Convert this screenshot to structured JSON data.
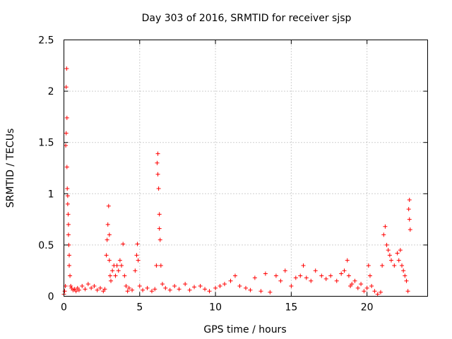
{
  "chart_data": {
    "type": "scatter",
    "title": "Day 303 of 2016, SRMTID for receiver sjsp",
    "xlabel": "GPS time / hours",
    "ylabel": "SRMTID / TECUs",
    "xlim": [
      0,
      24
    ],
    "ylim": [
      0,
      2.5
    ],
    "x_ticks": [
      0,
      5,
      10,
      15,
      20
    ],
    "x_tick_labels": [
      "0",
      "5",
      "10",
      "15",
      "20"
    ],
    "y_ticks": [
      0,
      0.5,
      1,
      1.5,
      2,
      2.5
    ],
    "y_tick_labels": [
      "0",
      "0.5",
      "1",
      "1.5",
      "2",
      "2.5"
    ],
    "grid": true,
    "marker": "+",
    "color": "#ff0000",
    "series": [
      {
        "name": "SRMTID",
        "x": [
          0.0,
          0.05,
          0.1,
          0.12,
          0.15,
          0.15,
          0.18,
          0.2,
          0.2,
          0.22,
          0.25,
          0.25,
          0.28,
          0.3,
          0.3,
          0.32,
          0.35,
          0.35,
          0.4,
          0.45,
          0.5,
          0.6,
          0.7,
          0.8,
          0.9,
          1.0,
          1.2,
          1.4,
          1.6,
          1.8,
          2.0,
          2.2,
          2.4,
          2.6,
          2.7,
          2.8,
          2.85,
          2.9,
          2.95,
          3.0,
          3.0,
          3.05,
          3.1,
          3.2,
          3.3,
          3.4,
          3.5,
          3.6,
          3.7,
          3.8,
          3.9,
          4.0,
          4.1,
          4.2,
          4.3,
          4.5,
          4.7,
          4.8,
          4.85,
          4.9,
          5.0,
          5.2,
          5.5,
          5.8,
          6.0,
          6.1,
          6.15,
          6.2,
          6.2,
          6.25,
          6.3,
          6.3,
          6.35,
          6.4,
          6.5,
          6.7,
          7.0,
          7.3,
          7.6,
          8.0,
          8.3,
          8.6,
          9.0,
          9.3,
          9.6,
          10.0,
          10.3,
          10.6,
          11.0,
          11.3,
          11.6,
          12.0,
          12.3,
          12.6,
          13.0,
          13.3,
          13.6,
          14.0,
          14.3,
          14.6,
          15.0,
          15.3,
          15.6,
          15.8,
          16.0,
          16.3,
          16.6,
          17.0,
          17.3,
          17.6,
          18.0,
          18.3,
          18.5,
          18.7,
          18.8,
          18.9,
          19.0,
          19.2,
          19.4,
          19.6,
          19.8,
          20.0,
          20.1,
          20.2,
          20.3,
          20.5,
          20.7,
          20.9,
          21.0,
          21.1,
          21.2,
          21.3,
          21.4,
          21.5,
          21.6,
          21.8,
          22.0,
          22.1,
          22.2,
          22.3,
          22.4,
          22.5,
          22.6,
          22.7,
          22.75,
          22.8,
          22.8,
          22.85
        ],
        "y": [
          0.02,
          0.05,
          0.1,
          1.47,
          1.59,
          2.04,
          2.22,
          1.74,
          1.26,
          1.05,
          0.98,
          0.9,
          0.8,
          0.7,
          0.6,
          0.5,
          0.4,
          0.3,
          0.2,
          0.1,
          0.08,
          0.06,
          0.07,
          0.05,
          0.08,
          0.06,
          0.1,
          0.07,
          0.12,
          0.08,
          0.1,
          0.06,
          0.08,
          0.05,
          0.07,
          0.4,
          0.55,
          0.7,
          0.88,
          0.6,
          0.35,
          0.2,
          0.15,
          0.25,
          0.3,
          0.2,
          0.3,
          0.25,
          0.35,
          0.3,
          0.51,
          0.2,
          0.1,
          0.05,
          0.08,
          0.06,
          0.25,
          0.4,
          0.51,
          0.35,
          0.1,
          0.06,
          0.08,
          0.05,
          0.07,
          0.3,
          1.3,
          1.39,
          1.19,
          1.05,
          0.8,
          0.66,
          0.55,
          0.3,
          0.12,
          0.08,
          0.06,
          0.1,
          0.07,
          0.12,
          0.06,
          0.09,
          0.1,
          0.07,
          0.05,
          0.08,
          0.1,
          0.12,
          0.15,
          0.2,
          0.1,
          0.08,
          0.06,
          0.18,
          0.05,
          0.22,
          0.04,
          0.2,
          0.15,
          0.25,
          0.1,
          0.18,
          0.2,
          0.3,
          0.18,
          0.15,
          0.25,
          0.2,
          0.17,
          0.2,
          0.15,
          0.22,
          0.25,
          0.35,
          0.2,
          0.1,
          0.12,
          0.15,
          0.08,
          0.12,
          0.05,
          0.08,
          0.3,
          0.2,
          0.1,
          0.05,
          0.02,
          0.04,
          0.3,
          0.6,
          0.68,
          0.5,
          0.45,
          0.4,
          0.35,
          0.3,
          0.42,
          0.35,
          0.45,
          0.3,
          0.25,
          0.2,
          0.15,
          0.05,
          0.85,
          0.94,
          0.75,
          0.65
        ]
      }
    ]
  }
}
